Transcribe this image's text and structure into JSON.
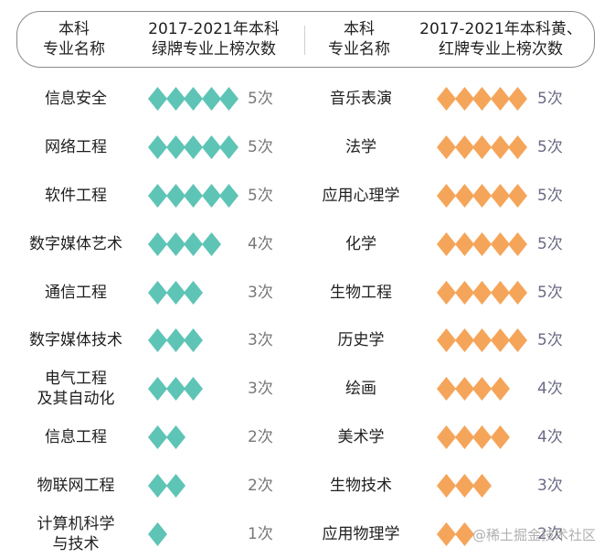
{
  "header": {
    "col1": [
      "本科",
      "专业名称"
    ],
    "col2": [
      "2017-2021年本科",
      "绿牌专业上榜次数"
    ],
    "col3": [
      "本科",
      "专业名称"
    ],
    "col4": [
      "2017-2021年本科黄、",
      "红牌专业上榜次数"
    ]
  },
  "colors": {
    "green_diamond": "#5ec4b6",
    "orange_diamond": "#f5a55a",
    "border": "#8a8a8a",
    "green_count_text": "#777777",
    "orange_count_text": "#6b6a85"
  },
  "watermark": "@稀土掘金技术社区",
  "chart_data": [
    {
      "type": "table",
      "title": "2017-2021年本科绿牌专业上榜次数",
      "columns": [
        "本科专业名称",
        "上榜次数"
      ],
      "categories": [
        "信息安全",
        "网络工程",
        "软件工程",
        "数字媒体艺术",
        "通信工程",
        "数字媒体技术",
        "电气工程及其自动化",
        "信息工程",
        "物联网工程",
        "计算机科学与技术"
      ],
      "values": [
        5,
        5,
        5,
        4,
        3,
        3,
        3,
        2,
        2,
        1
      ],
      "unit": "次",
      "marker": "diamond",
      "color": "#5ec4b6"
    },
    {
      "type": "table",
      "title": "2017-2021年本科黄、红牌专业上榜次数",
      "columns": [
        "本科专业名称",
        "上榜次数"
      ],
      "categories": [
        "音乐表演",
        "法学",
        "应用心理学",
        "化学",
        "生物工程",
        "历史学",
        "绘画",
        "美术学",
        "生物技术",
        "应用物理学"
      ],
      "values": [
        5,
        5,
        5,
        5,
        5,
        5,
        4,
        4,
        3,
        2
      ],
      "unit": "次",
      "marker": "diamond",
      "color": "#f5a55a"
    }
  ],
  "green_rows": [
    {
      "name": [
        "信息安全"
      ],
      "count": 5,
      "label": "5次"
    },
    {
      "name": [
        "网络工程"
      ],
      "count": 5,
      "label": "5次"
    },
    {
      "name": [
        "软件工程"
      ],
      "count": 5,
      "label": "5次"
    },
    {
      "name": [
        "数字媒体艺术"
      ],
      "count": 4,
      "label": "4次"
    },
    {
      "name": [
        "通信工程"
      ],
      "count": 3,
      "label": "3次"
    },
    {
      "name": [
        "数字媒体技术"
      ],
      "count": 3,
      "label": "3次"
    },
    {
      "name": [
        "电气工程",
        "及其自动化"
      ],
      "count": 3,
      "label": "3次"
    },
    {
      "name": [
        "信息工程"
      ],
      "count": 2,
      "label": "2次"
    },
    {
      "name": [
        "物联网工程"
      ],
      "count": 2,
      "label": "2次"
    },
    {
      "name": [
        "计算机科学",
        "与技术"
      ],
      "count": 1,
      "label": "1次"
    }
  ],
  "orange_rows": [
    {
      "name": [
        "音乐表演"
      ],
      "count": 5,
      "label": "5次"
    },
    {
      "name": [
        "法学"
      ],
      "count": 5,
      "label": "5次"
    },
    {
      "name": [
        "应用心理学"
      ],
      "count": 5,
      "label": "5次"
    },
    {
      "name": [
        "化学"
      ],
      "count": 5,
      "label": "5次"
    },
    {
      "name": [
        "生物工程"
      ],
      "count": 5,
      "label": "5次"
    },
    {
      "name": [
        "历史学"
      ],
      "count": 5,
      "label": "5次"
    },
    {
      "name": [
        "绘画"
      ],
      "count": 4,
      "label": "4次"
    },
    {
      "name": [
        "美术学"
      ],
      "count": 4,
      "label": "4次"
    },
    {
      "name": [
        "生物技术"
      ],
      "count": 3,
      "label": "3次"
    },
    {
      "name": [
        "应用物理学"
      ],
      "count": 2,
      "label": "2次"
    }
  ]
}
